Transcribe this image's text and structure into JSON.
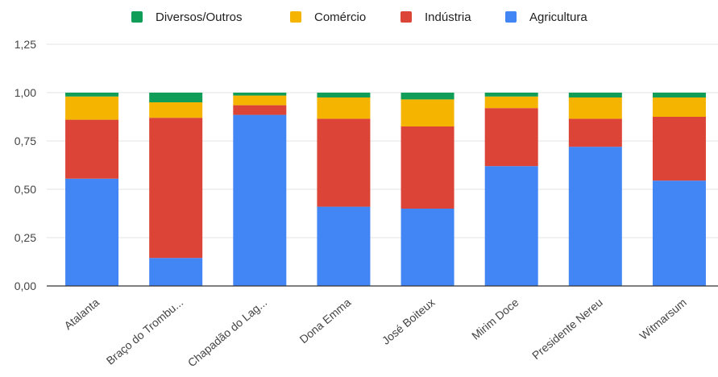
{
  "chart_data": {
    "type": "bar",
    "stacked": true,
    "categories": [
      "Atalanta",
      "Braço do Trombu...",
      "Chapadão do Lag...",
      "Dona Emma",
      "José Boiteux",
      "Mirim Doce",
      "Presidente Nereu",
      "Witmarsum"
    ],
    "series": [
      {
        "name": "Agricultura",
        "color": "#4285F4",
        "values": [
          0.555,
          0.145,
          0.885,
          0.41,
          0.4,
          0.62,
          0.72,
          0.545
        ]
      },
      {
        "name": "Indústria",
        "color": "#DB4437",
        "values": [
          0.305,
          0.725,
          0.05,
          0.455,
          0.425,
          0.3,
          0.145,
          0.33
        ]
      },
      {
        "name": "Comércio",
        "color": "#F4B400",
        "values": [
          0.12,
          0.08,
          0.05,
          0.11,
          0.14,
          0.06,
          0.11,
          0.1
        ]
      },
      {
        "name": "Diversos/Outros",
        "color": "#0F9D58",
        "values": [
          0.02,
          0.05,
          0.015,
          0.025,
          0.035,
          0.02,
          0.025,
          0.025
        ]
      }
    ],
    "legend_order": [
      "Diversos/Outros",
      "Comércio",
      "Indústria",
      "Agricultura"
    ],
    "y_ticks": [
      "0,00",
      "0,25",
      "0,50",
      "0,75",
      "1,00",
      "1,25"
    ],
    "y_tick_values": [
      0,
      0.25,
      0.5,
      0.75,
      1.0,
      1.25
    ],
    "ylim": [
      0,
      1.25
    ],
    "grid": true,
    "legend_position": "top"
  }
}
